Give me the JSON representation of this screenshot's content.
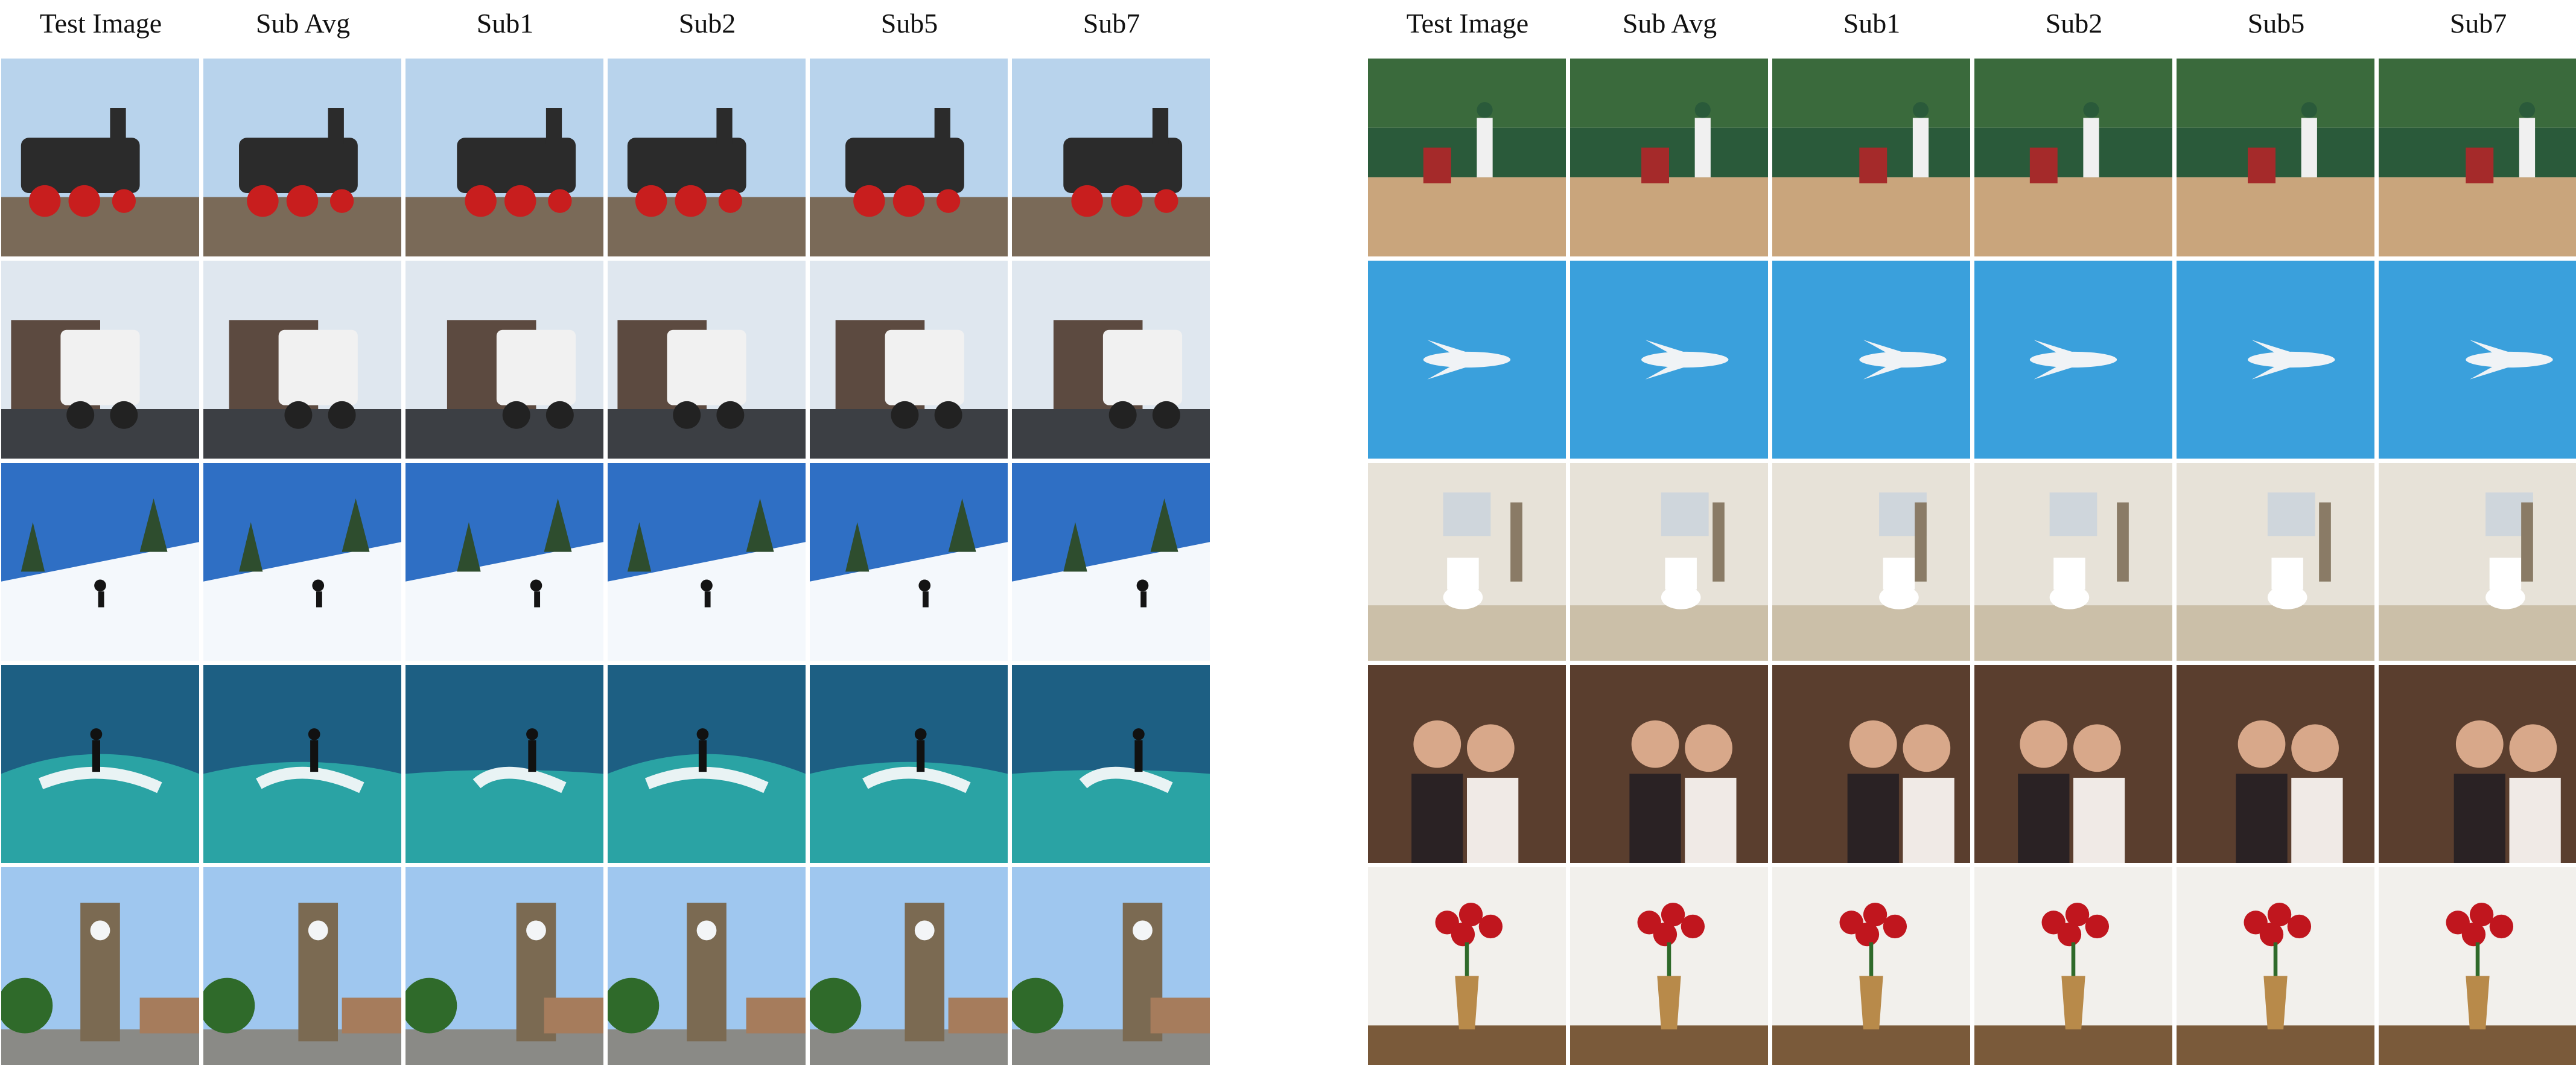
{
  "panels": [
    {
      "columns": [
        "Test Image",
        "Sub Avg",
        "Sub1",
        "Sub2",
        "Sub5",
        "Sub7"
      ],
      "rows": [
        {
          "scene": "steam-locomotive",
          "palette": [
            "#b8d3ec",
            "#2b2b2b",
            "#c81e1e",
            "#7a6a58"
          ]
        },
        {
          "scene": "semi-truck",
          "palette": [
            "#dfe7ef",
            "#f1f1f1",
            "#5c4a40",
            "#3c3f44"
          ]
        },
        {
          "scene": "skier-on-snowy-slope",
          "palette": [
            "#2f6fc4",
            "#f4f8fc",
            "#2e4d2e",
            "#141414"
          ]
        },
        {
          "scene": "surfer-on-wave",
          "palette": [
            "#1d5f83",
            "#2aa3a4",
            "#e9f3f4",
            "#111111"
          ]
        },
        {
          "scene": "clock-tower-town",
          "palette": [
            "#9fc7ef",
            "#7b6a52",
            "#2f6a2a",
            "#f3f5f7"
          ]
        }
      ]
    },
    {
      "columns": [
        "Test Image",
        "Sub Avg",
        "Sub1",
        "Sub2",
        "Sub5",
        "Sub7"
      ],
      "rows": [
        {
          "scene": "baseball-batter-and-catcher",
          "palette": [
            "#3a6a3c",
            "#c9a57c",
            "#2a5a3a",
            "#f0f0f0"
          ]
        },
        {
          "scene": "airplane-in-sky",
          "palette": [
            "#3aa0dc",
            "#f0f3f6",
            "#1a2a50",
            "#6ab7ea"
          ]
        },
        {
          "scene": "bathroom-with-toilet",
          "palette": [
            "#e7e2d8",
            "#ffffff",
            "#cbbfa8",
            "#8a7b66"
          ]
        },
        {
          "scene": "smiling-couple",
          "palette": [
            "#5a3e2e",
            "#d8a88a",
            "#2a2224",
            "#f0eae6"
          ]
        },
        {
          "scene": "red-roses-in-vase",
          "palette": [
            "#f2f0ec",
            "#c0161e",
            "#2f6a2a",
            "#b88a4a"
          ]
        }
      ]
    }
  ]
}
